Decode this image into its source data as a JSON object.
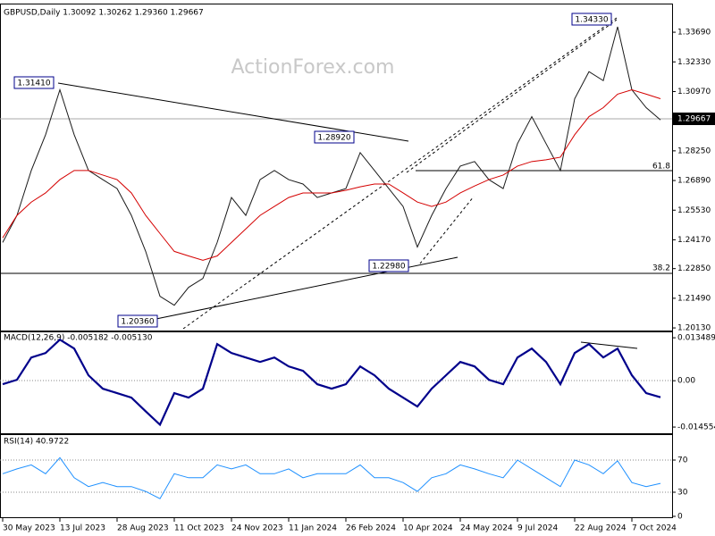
{
  "watermark": "ActionForex.com",
  "annotations": [
    "1.31410",
    "1.28920",
    "1.22980",
    "1.20360",
    "1.34330",
    "61.8",
    "38.2",
    "1.29667"
  ],
  "chart_data": [
    {
      "type": "line",
      "title": "GBPUSD,Daily  1.30092 1.30262 1.29360 1.29667",
      "categories": [
        "30 May 2023",
        null,
        null,
        null,
        "13 Jul 2023",
        null,
        null,
        null,
        "28 Aug 2023",
        null,
        null,
        null,
        "11 Oct 2023",
        null,
        null,
        null,
        "24 Nov 2023",
        null,
        null,
        null,
        "11 Jan 2024",
        null,
        null,
        null,
        "26 Feb 2024",
        null,
        null,
        null,
        "10 Apr 2024",
        null,
        null,
        null,
        "24 May 2024",
        null,
        null,
        null,
        "9 Jul 2024",
        null,
        null,
        null,
        "22 Aug 2024",
        null,
        null,
        null,
        "7 Oct 2024",
        null,
        null
      ],
      "ylim": [
        1.2001,
        1.3484
      ],
      "yticks": [
        {
          "value": 1.3369,
          "label": "1.33690"
        },
        {
          "value": 1.3233,
          "label": "1.32330"
        },
        {
          "value": 1.3097,
          "label": "1.30970"
        },
        {
          "value": 1.2825,
          "label": "1.28250"
        },
        {
          "value": 1.2689,
          "label": "1.26890"
        },
        {
          "value": 1.2553,
          "label": "1.25530"
        },
        {
          "value": 1.2417,
          "label": "1.24170"
        },
        {
          "value": 1.2285,
          "label": "1.22850"
        },
        {
          "value": 1.2149,
          "label": "1.21490"
        },
        {
          "value": 1.2013,
          "label": "1.20130"
        }
      ],
      "series": [
        {
          "color": "#1a1a1a",
          "values": [
            1.2405,
            1.2529,
            1.2735,
            1.2899,
            1.3105,
            1.2899,
            1.2735,
            1.2693,
            1.2652,
            1.2529,
            1.2364,
            1.2158,
            1.2117,
            1.2199,
            1.224,
            1.2405,
            1.2611,
            1.2529,
            1.2693,
            1.2735,
            1.2693,
            1.2673,
            1.2611,
            1.2632,
            1.2652,
            1.2817,
            1.2735,
            1.2652,
            1.257,
            1.2384,
            1.2529,
            1.2652,
            1.2755,
            1.2776,
            1.2693,
            1.2652,
            1.2858,
            1.2982,
            1.2858,
            1.2735,
            1.3064,
            1.3188,
            1.3147,
            1.3394,
            1.3105,
            1.3023,
            1.2967
          ]
        },
        {
          "color": "#d40000",
          "values": [
            1.2426,
            1.2529,
            1.259,
            1.2632,
            1.2693,
            1.2735,
            1.2735,
            1.2714,
            1.2693,
            1.2632,
            1.2529,
            1.2446,
            1.2364,
            1.2343,
            1.2323,
            1.2343,
            1.2405,
            1.2467,
            1.2529,
            1.257,
            1.2611,
            1.2632,
            1.2632,
            1.2632,
            1.2644,
            1.266,
            1.2673,
            1.2673,
            1.2632,
            1.259,
            1.257,
            1.259,
            1.2632,
            1.2664,
            1.2693,
            1.2714,
            1.2755,
            1.2776,
            1.2784,
            1.2796,
            1.2899,
            1.2982,
            1.3023,
            1.3085,
            1.3105,
            1.3085,
            1.3064
          ]
        }
      ]
    },
    {
      "type": "line",
      "title": "MACD(12,26,9) -0.005182 -0.005130",
      "ylim": [
        -0.0165,
        0.0152
      ],
      "yticks": [
        0.013489,
        {
          "value": 0,
          "label": "0.00"
        },
        -0.014554
      ],
      "series": [
        {
          "color": "#00008b",
          "values": [
            -0.0011,
            0.0003,
            0.0073,
            0.0087,
            0.0129,
            0.0101,
            0.0017,
            -0.0025,
            -0.0039,
            -0.0053,
            -0.0096,
            -0.0138,
            -0.0039,
            -0.0053,
            -0.0025,
            0.0115,
            0.0087,
            0.0073,
            0.0059,
            0.0073,
            0.0045,
            0.0031,
            -0.0011,
            -0.0025,
            -0.0011,
            0.0045,
            0.0017,
            -0.0025,
            -0.0053,
            -0.0081,
            -0.0025,
            0.0017,
            0.0059,
            0.0045,
            0.0003,
            -0.0011,
            0.0073,
            0.0101,
            0.0059,
            -0.0011,
            0.0087,
            0.0115,
            0.0073,
            0.0101,
            0.0017,
            -0.0039,
            -0.0052
          ]
        }
      ]
    },
    {
      "type": "line",
      "title": "RSI(14) 40.9722",
      "ylim": [
        0,
        100
      ],
      "yticks": [
        70,
        30,
        0
      ],
      "series": [
        {
          "color": "#1e90ff",
          "values": [
            53,
            59,
            64,
            53,
            73,
            48,
            37,
            42,
            37,
            37,
            31,
            22,
            53,
            48,
            48,
            64,
            59,
            64,
            53,
            53,
            59,
            48,
            53,
            53,
            53,
            64,
            48,
            48,
            42,
            31,
            48,
            53,
            64,
            59,
            53,
            48,
            70,
            59,
            48,
            37,
            70,
            64,
            53,
            69,
            42,
            37,
            41
          ]
        }
      ]
    }
  ]
}
